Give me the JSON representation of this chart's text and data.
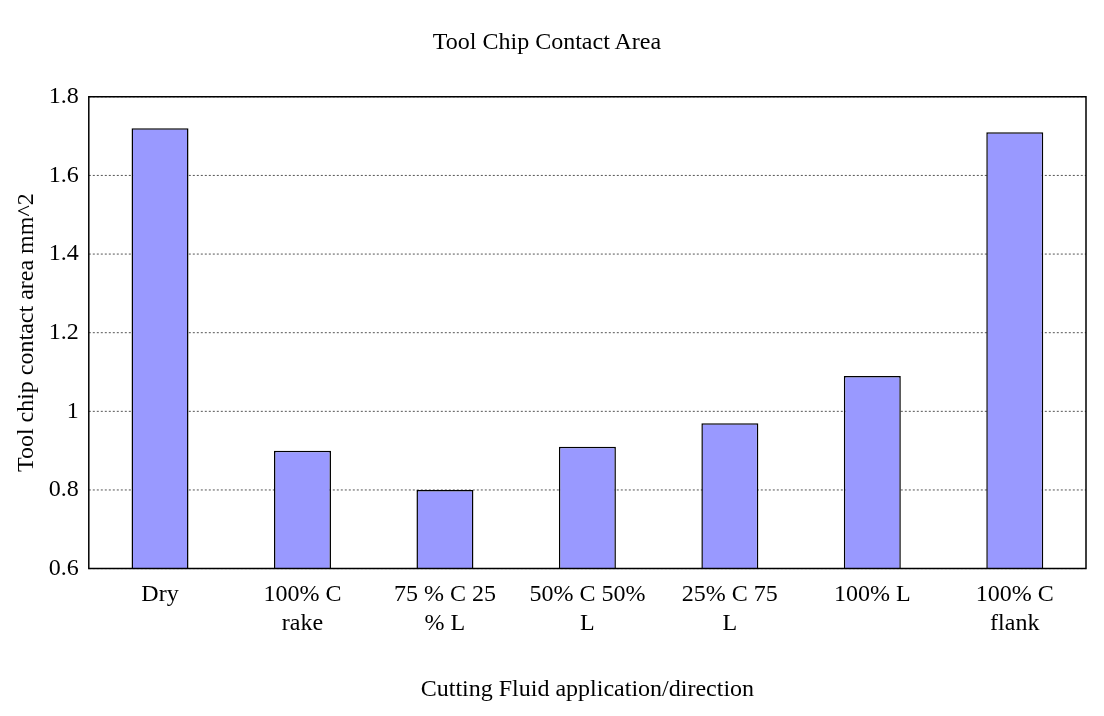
{
  "chart_data": {
    "type": "bar",
    "title": "Tool Chip Contact Area",
    "xlabel": "Cutting Fluid application/direction",
    "ylabel": "Tool chip contact area mm^2",
    "categories": [
      "Dry",
      "100% C rake",
      "75 % C 25 % L",
      "50% C 50% L",
      "25% C 75 L",
      "100% L",
      "100% C flank"
    ],
    "values": [
      1.72,
      0.9,
      0.8,
      0.91,
      0.97,
      1.09,
      1.71
    ],
    "color": "#9999ff",
    "ylim": [
      0.6,
      1.8
    ],
    "yticks": [
      0.6,
      0.8,
      1,
      1.2,
      1.4,
      1.6,
      1.8
    ],
    "grid": "y",
    "legend": false
  }
}
